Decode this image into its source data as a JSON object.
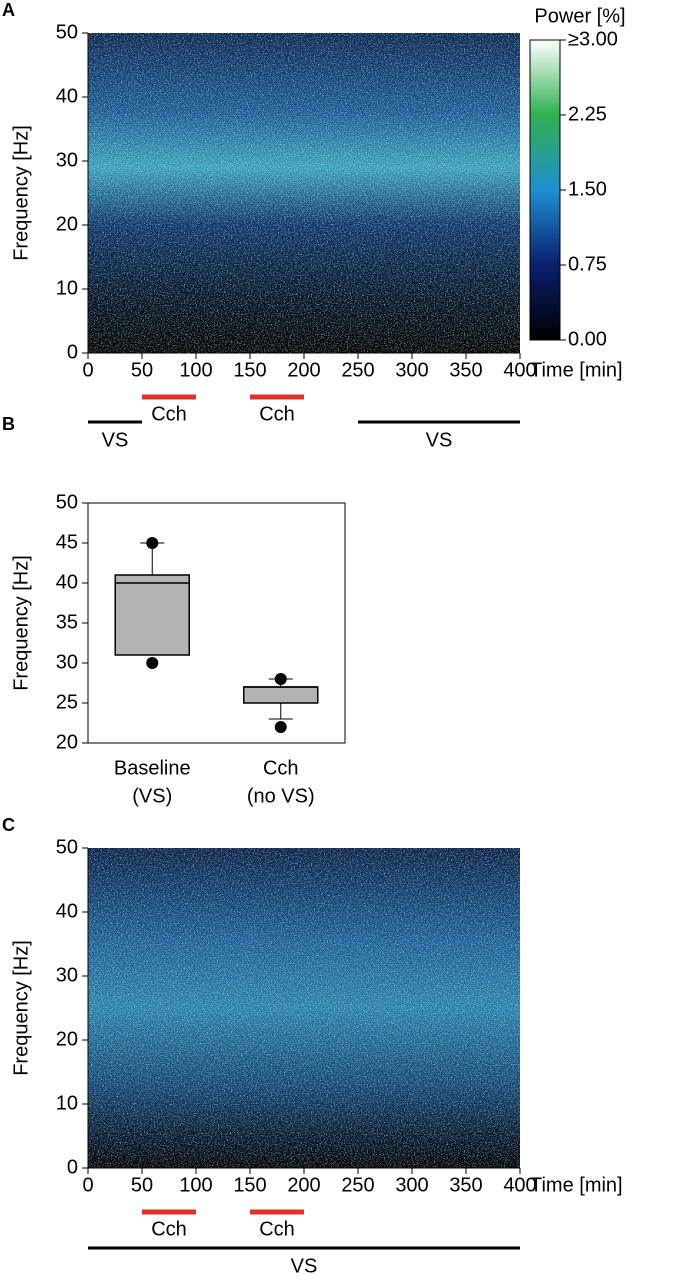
{
  "chart_data": [
    {
      "type": "heatmap",
      "panel_label": "A",
      "ylabel": "Frequency [Hz]",
      "xlabel": "Time [min]",
      "xlim": [
        0,
        400
      ],
      "xticks": [
        0,
        50,
        100,
        150,
        200,
        250,
        300,
        350,
        400
      ],
      "ylim": [
        0,
        50
      ],
      "yticks": [
        0,
        10,
        20,
        30,
        40,
        50
      ],
      "colorbar": {
        "title": "Power [%]",
        "lim": [
          0,
          3
        ],
        "ticks": [
          {
            "value": 0,
            "label": "0.00"
          },
          0.75,
          {
            "value": 1.5,
            "label": "1.50"
          },
          2.25,
          {
            "value": 3,
            "label": "≥3.00"
          }
        ]
      },
      "treatments": [
        {
          "label": "Cch",
          "start": 50,
          "end": 100,
          "color": "#e0302a"
        },
        {
          "label": "Cch",
          "start": 150,
          "end": 200,
          "color": "#e0302a"
        }
      ],
      "conditions": [
        {
          "label": "VS",
          "start": 0,
          "end": 50,
          "color": "#000000"
        },
        {
          "label": "VS",
          "start": 250,
          "end": 400,
          "color": "#000000"
        }
      ]
    },
    {
      "type": "box",
      "panel_label": "B",
      "ylabel": "Frequency [Hz]",
      "categories": [
        [
          "Baseline",
          "(VS)"
        ],
        [
          "Cch",
          "(no VS)"
        ]
      ],
      "ylim": [
        20,
        50
      ],
      "yticks": [
        20,
        25,
        30,
        35,
        40,
        45,
        50
      ],
      "color": "#b3b3b3",
      "boxes": [
        {
          "min": 31,
          "q1": 31,
          "median": 40,
          "q3": 41,
          "max": 45,
          "points": [
            45,
            30
          ]
        },
        {
          "min": 23,
          "q1": 25,
          "median": 27,
          "q3": 27,
          "max": 28,
          "points": [
            28,
            22
          ]
        }
      ]
    },
    {
      "type": "heatmap",
      "panel_label": "C",
      "ylabel": "Frequency [Hz]",
      "xlabel": "Time [min]",
      "xlim": [
        0,
        400
      ],
      "xticks": [
        0,
        50,
        100,
        150,
        200,
        250,
        300,
        350,
        400
      ],
      "ylim": [
        0,
        50
      ],
      "yticks": [
        0,
        10,
        20,
        30,
        40,
        50
      ],
      "treatments": [
        {
          "label": "Cch",
          "start": 50,
          "end": 100,
          "color": "#e0302a"
        },
        {
          "label": "Cch",
          "start": 150,
          "end": 200,
          "color": "#e0302a"
        }
      ],
      "conditions": [
        {
          "label": "VS",
          "start": 0,
          "end": 400,
          "color": "#000000"
        }
      ]
    }
  ]
}
